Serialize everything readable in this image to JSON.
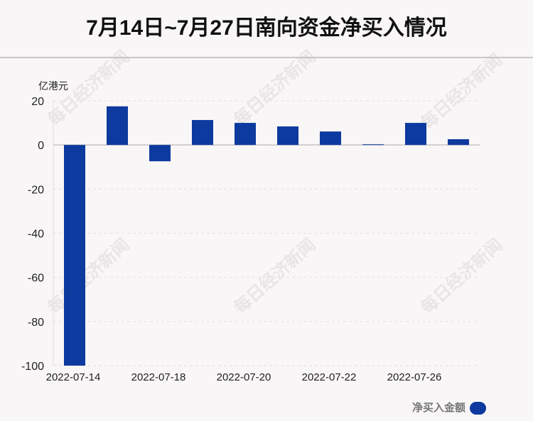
{
  "watermark": "每日经济新闻",
  "chart_data": {
    "type": "bar",
    "title": "7月14日~7月27日南向资金净买入情况",
    "ylabel": "亿港元",
    "xlabel": "",
    "categories": [
      "2022-07-14",
      "",
      "2022-07-18",
      "",
      "2022-07-20",
      "",
      "2022-07-22",
      "",
      "2022-07-26",
      ""
    ],
    "series": [
      {
        "name": "净买入金额",
        "values": [
          -100.0,
          17.5,
          -7.4,
          11.3,
          10.0,
          8.4,
          6.1,
          0.3,
          10.0,
          2.6
        ]
      }
    ],
    "ylim": [
      -100,
      20
    ],
    "yticks": [
      20,
      0,
      -20,
      -40,
      -60,
      -80,
      -100
    ],
    "grid": true,
    "legend_position": "bottom-right",
    "bar_color": "#0d3a9e",
    "grid_color": "#e2dfe1",
    "axis_color": "#c8c4c6"
  }
}
